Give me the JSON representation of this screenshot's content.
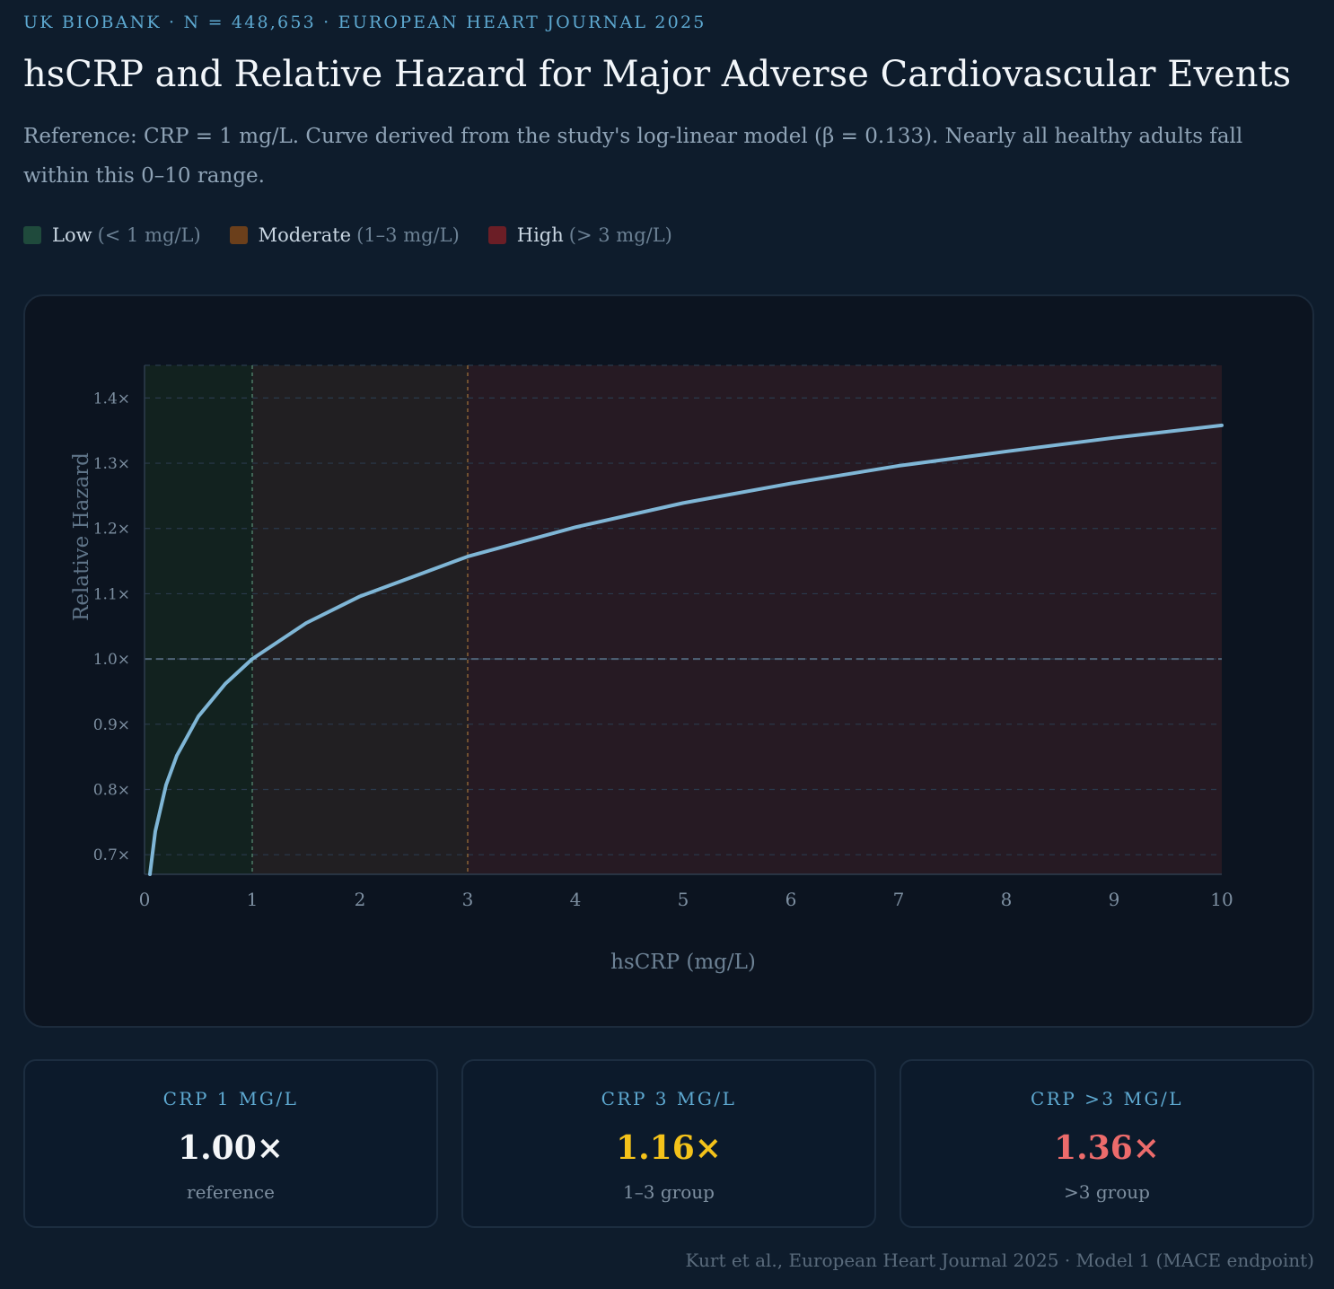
{
  "header": {
    "eyebrow": "UK BIOBANK · N = 448,653 · EUROPEAN HEART JOURNAL 2025",
    "title": "hsCRP and Relative Hazard for Major Adverse Cardiovascular Events",
    "subtitle": "Reference: CRP = 1 mg/L. Curve derived from the study's log-linear model (β = 0.133). Nearly all healthy adults fall within this 0–10 range."
  },
  "legend": [
    {
      "label": "Low",
      "range": "(< 1 mg/L)",
      "color": "#1f4a3c"
    },
    {
      "label": "Moderate",
      "range": "(1–3 mg/L)",
      "color": "#6b3f1b"
    },
    {
      "label": "High",
      "range": "(> 3 mg/L)",
      "color": "#6b1e26"
    }
  ],
  "chart_data": {
    "type": "line",
    "xlabel": "hsCRP (mg/L)",
    "ylabel": "Relative Hazard",
    "xlim": [
      0,
      10
    ],
    "ylim": [
      0.67,
      1.45
    ],
    "x_ticks": [
      0,
      1,
      2,
      3,
      4,
      5,
      6,
      7,
      8,
      9,
      10
    ],
    "y_ticks": [
      0.7,
      0.8,
      0.9,
      1.0,
      1.1,
      1.2,
      1.3,
      1.4
    ],
    "y_tick_suffix": "×",
    "grid": true,
    "reference_line": 1.0,
    "regions": [
      {
        "from": 0,
        "to": 1,
        "color": "#12221f"
      },
      {
        "from": 1,
        "to": 3,
        "color": "#211f22"
      },
      {
        "from": 3,
        "to": 10,
        "color": "#261a23"
      }
    ],
    "boundaries": [
      {
        "x": 1,
        "color": "#4e7a66"
      },
      {
        "x": 3,
        "color": "#8a6235"
      }
    ],
    "series": [
      {
        "color": "#7fb6d6",
        "x": [
          0.05,
          0.1,
          0.2,
          0.3,
          0.5,
          0.75,
          1,
          1.5,
          2,
          3,
          4,
          5,
          6,
          7,
          8,
          9,
          10
        ],
        "y": [
          0.67,
          0.736,
          0.807,
          0.852,
          0.912,
          0.962,
          1.0,
          1.055,
          1.096,
          1.157,
          1.202,
          1.239,
          1.269,
          1.296,
          1.318,
          1.339,
          1.358
        ]
      }
    ]
  },
  "stats": [
    {
      "label": "CRP 1 MG/L",
      "value": "1.00×",
      "note": "reference",
      "color": "#f4f6f8"
    },
    {
      "label": "CRP 3 MG/L",
      "value": "1.16×",
      "note": "1–3 group",
      "color": "#f4c21a"
    },
    {
      "label": "CRP >3 MG/L",
      "value": "1.36×",
      "note": ">3 group",
      "color": "#ec6b6b"
    }
  ],
  "footer": "Kurt et al., European Heart Journal 2025 · Model 1 (MACE endpoint)"
}
